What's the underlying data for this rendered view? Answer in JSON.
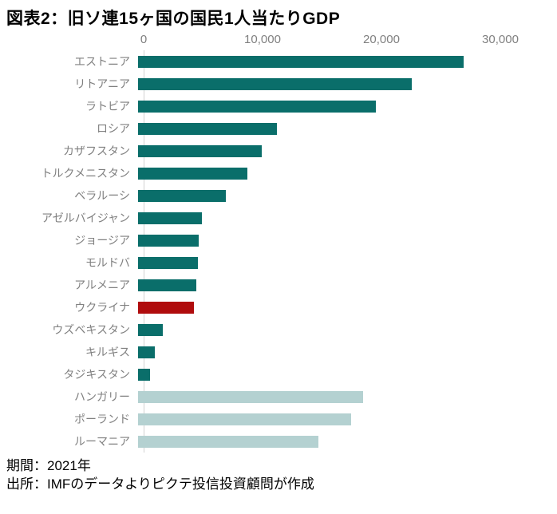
{
  "chart_data": {
    "type": "bar",
    "orientation": "horizontal",
    "title": "図表2：旧ソ連15ヶ国の国民1人当たりGDP",
    "unit": "USD",
    "xlim": [
      0,
      34000
    ],
    "x_ticks": [
      0,
      10000,
      20000,
      30000
    ],
    "x_tick_labels": [
      "0",
      "10,000",
      "20,000",
      "30,000"
    ],
    "grid": false,
    "legend": "none",
    "bars": [
      {
        "label": "エストニア",
        "value": 27400,
        "group": "fsu"
      },
      {
        "label": "リトアニア",
        "value": 23000,
        "group": "fsu"
      },
      {
        "label": "ラトビア",
        "value": 20000,
        "group": "fsu"
      },
      {
        "label": "ロシア",
        "value": 11700,
        "group": "fsu"
      },
      {
        "label": "カザフスタン",
        "value": 10400,
        "group": "fsu"
      },
      {
        "label": "トルクメニスタン",
        "value": 9200,
        "group": "fsu"
      },
      {
        "label": "ベラルーシ",
        "value": 7400,
        "group": "fsu"
      },
      {
        "label": "アゼルバイジャン",
        "value": 5400,
        "group": "fsu"
      },
      {
        "label": "ジョージア",
        "value": 5100,
        "group": "fsu"
      },
      {
        "label": "モルドバ",
        "value": 5000,
        "group": "fsu"
      },
      {
        "label": "アルメニア",
        "value": 4900,
        "group": "fsu"
      },
      {
        "label": "ウクライナ",
        "value": 4700,
        "group": "highlight"
      },
      {
        "label": "ウズベキスタン",
        "value": 2100,
        "group": "fsu"
      },
      {
        "label": "キルギス",
        "value": 1400,
        "group": "fsu"
      },
      {
        "label": "タジキスタン",
        "value": 1000,
        "group": "fsu"
      },
      {
        "label": "ハンガリー",
        "value": 18900,
        "group": "comparison"
      },
      {
        "label": "ポーランド",
        "value": 17900,
        "group": "comparison"
      },
      {
        "label": "ルーマニア",
        "value": 15200,
        "group": "comparison"
      }
    ],
    "colors": {
      "fsu": "#0a6e6a",
      "highlight": "#b00c0d",
      "comparison": "#b4d1d1",
      "tick_label": "#808080",
      "category_label": "#808080",
      "axis_line": "#d2d2d2",
      "title": "#000000"
    },
    "notes": [
      "期間：2021年",
      "出所：IMFのデータよりピクテ投信投資顧問が作成"
    ]
  }
}
